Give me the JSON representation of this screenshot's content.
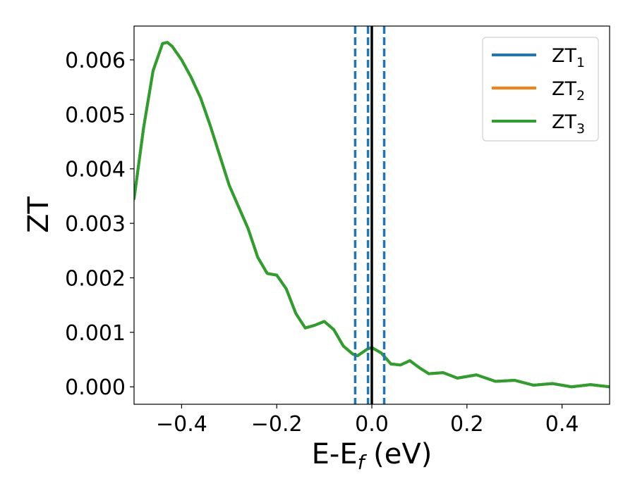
{
  "chart_data": {
    "type": "line",
    "xlabel": "E-E",
    "xlabel_sub": "f",
    "xlabel_tail": " (eV)",
    "ylabel": "ZT",
    "xlim": [
      -0.5,
      0.5
    ],
    "ylim": [
      -0.00032,
      0.00662
    ],
    "xticks": [
      -0.4,
      -0.2,
      0.0,
      0.2,
      0.4
    ],
    "xtick_labels": [
      "−0.4",
      "−0.2",
      "0.0",
      "0.2",
      "0.4"
    ],
    "yticks": [
      0.0,
      0.001,
      0.002,
      0.003,
      0.004,
      0.005,
      0.006
    ],
    "ytick_labels": [
      "0.000",
      "0.001",
      "0.002",
      "0.003",
      "0.004",
      "0.005",
      "0.006"
    ],
    "grid": false,
    "legend_position": "top-right",
    "x": [
      -0.5,
      -0.48,
      -0.46,
      -0.44,
      -0.43,
      -0.42,
      -0.4,
      -0.38,
      -0.36,
      -0.34,
      -0.32,
      -0.3,
      -0.28,
      -0.26,
      -0.24,
      -0.22,
      -0.2,
      -0.18,
      -0.16,
      -0.14,
      -0.12,
      -0.1,
      -0.08,
      -0.06,
      -0.04,
      -0.03,
      -0.02,
      -0.01,
      0.0,
      0.02,
      0.04,
      0.06,
      0.08,
      0.1,
      0.12,
      0.15,
      0.18,
      0.22,
      0.26,
      0.3,
      0.34,
      0.38,
      0.42,
      0.46,
      0.5
    ],
    "series": [
      {
        "name": "ZT",
        "name_sub": "1",
        "color": "#1f77b4",
        "values": [
          0.00345,
          0.00475,
          0.0058,
          0.0063,
          0.00632,
          0.00625,
          0.006,
          0.00568,
          0.0053,
          0.0048,
          0.00425,
          0.0037,
          0.0033,
          0.0029,
          0.00238,
          0.00208,
          0.00205,
          0.0018,
          0.00135,
          0.00108,
          0.00113,
          0.0012,
          0.00105,
          0.00075,
          0.0006,
          0.00057,
          0.00063,
          0.00069,
          0.00072,
          0.00062,
          0.00042,
          0.0004,
          0.00048,
          0.00035,
          0.00024,
          0.00026,
          0.00016,
          0.00022,
          0.0001,
          0.00012,
          3e-05,
          6e-05,
          0.0,
          4e-05,
          0.0
        ]
      },
      {
        "name": "ZT",
        "name_sub": "2",
        "color": "#ff7f0e",
        "values": [
          0.00345,
          0.00475,
          0.0058,
          0.0063,
          0.00632,
          0.00625,
          0.006,
          0.00568,
          0.0053,
          0.0048,
          0.00425,
          0.0037,
          0.0033,
          0.0029,
          0.00238,
          0.00208,
          0.00205,
          0.0018,
          0.00135,
          0.00108,
          0.00113,
          0.0012,
          0.00105,
          0.00075,
          0.0006,
          0.00057,
          0.00063,
          0.00069,
          0.00072,
          0.00062,
          0.00042,
          0.0004,
          0.00048,
          0.00035,
          0.00024,
          0.00026,
          0.00016,
          0.00022,
          0.0001,
          0.00012,
          3e-05,
          6e-05,
          0.0,
          4e-05,
          0.0
        ]
      },
      {
        "name": "ZT",
        "name_sub": "3",
        "color": "#2ca02c",
        "values": [
          0.00345,
          0.00475,
          0.0058,
          0.0063,
          0.00632,
          0.00625,
          0.006,
          0.00568,
          0.0053,
          0.0048,
          0.00425,
          0.0037,
          0.0033,
          0.0029,
          0.00238,
          0.00208,
          0.00205,
          0.0018,
          0.00135,
          0.00108,
          0.00113,
          0.0012,
          0.00105,
          0.00075,
          0.0006,
          0.00057,
          0.00063,
          0.00069,
          0.00072,
          0.00062,
          0.00042,
          0.0004,
          0.00048,
          0.00035,
          0.00024,
          0.00026,
          0.00016,
          0.00022,
          0.0001,
          0.00012,
          3e-05,
          6e-05,
          0.0,
          4e-05,
          0.0
        ]
      }
    ],
    "vlines": [
      {
        "x": -0.035,
        "style": "dashed",
        "color": "#1f77b4"
      },
      {
        "x": -0.008,
        "style": "dashed",
        "color": "#1f77b4"
      },
      {
        "x": 0.0,
        "style": "solid",
        "color": "#000000"
      },
      {
        "x": 0.026,
        "style": "dashed",
        "color": "#1f77b4"
      }
    ]
  }
}
